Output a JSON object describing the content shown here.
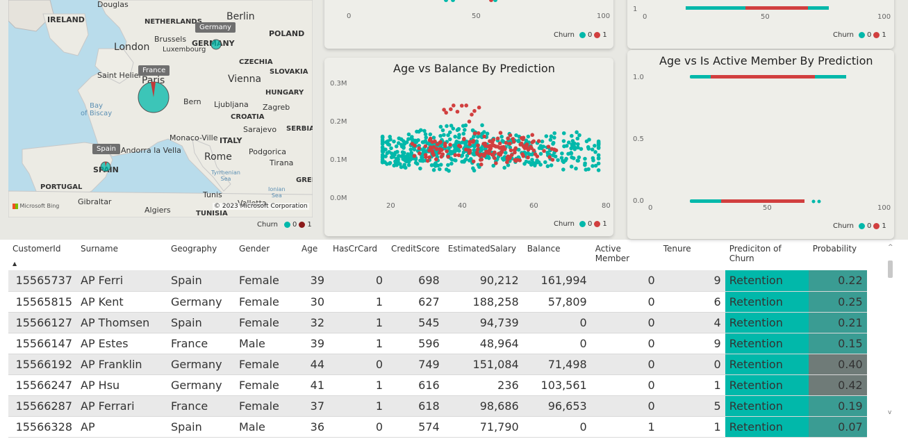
{
  "map": {
    "places": {
      "douglas": "Douglas",
      "ireland": "IRELAND",
      "netherlands": "NETHERLANDS",
      "berlin": "Berlin",
      "poland": "POLAND",
      "brussels": "Brussels",
      "germany": "GERMANY",
      "london": "London",
      "luxembourg": "Luxembourg",
      "czechia": "CZECHIA",
      "saint_helier": "Saint Helier",
      "paris": "Paris",
      "vienna": "Vienna",
      "slovakia": "SLOVAKIA",
      "hungary": "HUNGARY",
      "france": "FRANCE",
      "bay": "Bay\nof Biscay",
      "bern": "Bern",
      "ljubljana": "Ljubljana",
      "zagreb": "Zagreb",
      "croatia": "CROATIA",
      "sarajevo": "Sarajevo",
      "serbia": "SERBIA",
      "monaco": "Monaco-Ville",
      "italy": "ITALY",
      "andorra": "Andorra la Vella",
      "podgorica": "Podgorica",
      "rome": "Rome",
      "tirana": "Tirana",
      "spain": "SPAIN",
      "tyrrhenian": "Tyrrhenian\nSea",
      "portugal": "PORTUGAL",
      "gree": "GREE",
      "ionian": "Ionian\nSea",
      "tunis": "Tunis",
      "valletta": "Valletta",
      "gibraltar": "Gibraltar",
      "algiers": "Algiers",
      "tunisia": "TUNISIA"
    },
    "tooltips": {
      "germany": "Germany",
      "france": "France",
      "spain": "Spain"
    },
    "bing": "Microsoft Bing",
    "copyright": "© 2023 Microsoft Corporation",
    "legend_title": "Churn",
    "legend_items": [
      "0",
      "1"
    ]
  },
  "colors": {
    "teal": "#01b8aa",
    "red": "#d13f3f",
    "darkred": "#8b1a1a",
    "grayprob": "#6f7b78",
    "midprob": "#3a9c93"
  },
  "top_left_chart": {
    "xticks": [
      "0",
      "50",
      "100"
    ],
    "legend_title": "Churn",
    "legend_items": [
      "0",
      "1"
    ]
  },
  "top_right_chart": {
    "yticks": [
      "1"
    ],
    "xticks": [
      "0",
      "50",
      "100"
    ],
    "legend_title": "Churn",
    "legend_items": [
      "0",
      "1"
    ]
  },
  "balance_chart": {
    "title": "Age vs Balance By Prediction",
    "yticks": [
      "0.3M",
      "0.2M",
      "0.1M",
      "0.0M"
    ],
    "xticks": [
      "20",
      "40",
      "60",
      "80"
    ],
    "legend_title": "Churn",
    "legend_items": [
      "0",
      "1"
    ]
  },
  "active_chart": {
    "title": "Age vs Is Active Member By Prediction",
    "yticks": [
      "1.0",
      "0.5",
      "0.0"
    ],
    "xticks": [
      "0",
      "50",
      "100"
    ],
    "legend_title": "Churn",
    "legend_items": [
      "0",
      "1"
    ]
  },
  "chart_data": [
    {
      "type": "scatter",
      "title": "Age vs Balance By Prediction",
      "xlabel": "",
      "ylabel": "",
      "xlim": [
        15,
        85
      ],
      "ylim": [
        0,
        300000
      ],
      "series": [
        {
          "name": "0",
          "x": [
            20,
            24,
            27,
            30,
            33,
            36,
            38,
            40,
            43,
            47,
            52,
            58,
            64,
            70,
            75
          ],
          "y": [
            120000,
            115000,
            130000,
            110000,
            140000,
            125000,
            105000,
            150000,
            118000,
            135000,
            128000,
            112000,
            122000,
            132000,
            108000
          ]
        },
        {
          "name": "1",
          "x": [
            30,
            36,
            40,
            44,
            46,
            48,
            50,
            52,
            55,
            58,
            62
          ],
          "y": [
            115000,
            130000,
            210000,
            120000,
            140000,
            110000,
            125000,
            135000,
            118000,
            145000,
            120000
          ]
        }
      ]
    },
    {
      "type": "scatter",
      "title": "Age vs Is Active Member By Prediction",
      "xlabel": "",
      "ylabel": "",
      "xlim": [
        0,
        100
      ],
      "ylim": [
        0,
        1
      ],
      "series": [
        {
          "name": "0",
          "x": [
            18,
            30,
            45,
            60,
            75,
            85,
            92
          ],
          "y": [
            1,
            1,
            1,
            1,
            1,
            1,
            1
          ]
        },
        {
          "name": "1",
          "x": [
            30,
            42,
            50,
            58,
            66
          ],
          "y": [
            1,
            1,
            1,
            1,
            1
          ]
        }
      ]
    }
  ],
  "table": {
    "headers": [
      "CustomerId",
      "Surname",
      "Geography",
      "Gender",
      "Age",
      "HasCrCard",
      "CreditScore",
      "EstimatedSalary",
      "Balance",
      "Active Member",
      "Tenure",
      "Prediciton of Churn",
      "Probability"
    ],
    "rows": [
      [
        "15565737",
        "AP Ferri",
        "Spain",
        "Female",
        "39",
        "0",
        "698",
        "90,212",
        "161,994",
        "0",
        "9",
        "Retention",
        "0.22"
      ],
      [
        "15565815",
        "AP Kent",
        "Germany",
        "Female",
        "30",
        "1",
        "627",
        "188,258",
        "57,809",
        "0",
        "6",
        "Retention",
        "0.25"
      ],
      [
        "15566127",
        "AP Thomsen",
        "Spain",
        "Female",
        "32",
        "1",
        "545",
        "94,739",
        "0",
        "0",
        "4",
        "Retention",
        "0.21"
      ],
      [
        "15566147",
        "AP Estes",
        "France",
        "Male",
        "39",
        "1",
        "596",
        "48,964",
        "0",
        "0",
        "9",
        "Retention",
        "0.15"
      ],
      [
        "15566192",
        "AP Franklin",
        "Germany",
        "Female",
        "44",
        "0",
        "749",
        "151,084",
        "71,498",
        "0",
        "0",
        "Retention",
        "0.40"
      ],
      [
        "15566247",
        "AP Hsu",
        "Germany",
        "Female",
        "41",
        "1",
        "616",
        "236",
        "103,561",
        "0",
        "1",
        "Retention",
        "0.42"
      ],
      [
        "15566287",
        "AP Ferrari",
        "France",
        "Female",
        "37",
        "1",
        "618",
        "98,686",
        "96,653",
        "0",
        "5",
        "Retention",
        "0.19"
      ],
      [
        "15566328",
        "AP",
        "Spain",
        "Male",
        "36",
        "0",
        "574",
        "71,790",
        "0",
        "1",
        "1",
        "Retention",
        "0.07"
      ]
    ]
  }
}
